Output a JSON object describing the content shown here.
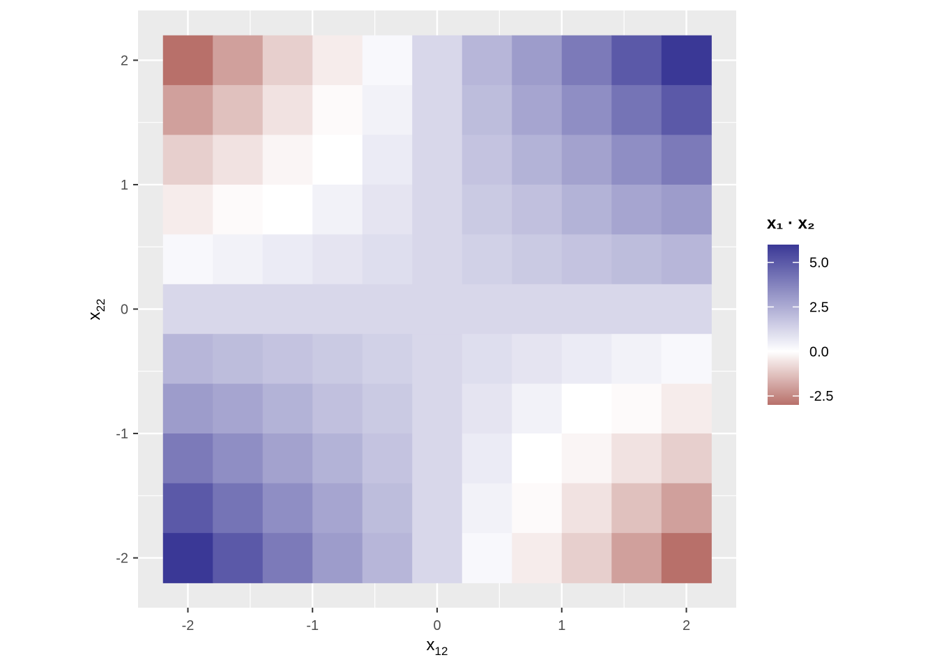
{
  "chart_data": {
    "type": "heatmap",
    "xlabel": {
      "main": "x",
      "sub": "12"
    },
    "ylabel": {
      "main": "x",
      "sub": "22"
    },
    "x_ticks": [
      -2,
      -1,
      0,
      1,
      2
    ],
    "x_tick_labels": [
      "-2",
      "-1",
      "0",
      "1",
      "2"
    ],
    "y_ticks": [
      -2,
      -1,
      0,
      1,
      2
    ],
    "y_tick_labels": [
      "-2",
      "-1",
      "0",
      "1",
      "2"
    ],
    "xlim": [
      -2.4,
      2.4
    ],
    "ylim": [
      -2.4,
      2.4
    ],
    "grid": true,
    "x_centers": [
      -2.0,
      -1.6,
      -1.2,
      -0.8,
      -0.4,
      0.0,
      0.4,
      0.8,
      1.2,
      1.6,
      2.0
    ],
    "y_centers": [
      2.0,
      1.6,
      1.2,
      0.8,
      0.4,
      0.0,
      -0.4,
      -0.8,
      -1.2,
      -1.6,
      -2.0
    ],
    "values": [
      [
        -3.0,
        -2.0,
        -1.0,
        -0.4,
        0.2,
        1.2,
        2.2,
        3.0,
        4.0,
        5.0,
        6.0
      ],
      [
        -2.0,
        -1.3,
        -0.6,
        -0.1,
        0.4,
        1.2,
        2.0,
        2.7,
        3.4,
        4.2,
        5.0
      ],
      [
        -1.0,
        -0.6,
        -0.2,
        0.0,
        0.6,
        1.2,
        1.8,
        2.3,
        2.8,
        3.4,
        4.0
      ],
      [
        -0.4,
        -0.1,
        0.0,
        0.4,
        0.8,
        1.2,
        1.6,
        1.9,
        2.3,
        2.7,
        3.0
      ],
      [
        0.2,
        0.4,
        0.6,
        0.8,
        1.0,
        1.2,
        1.4,
        1.6,
        1.8,
        2.0,
        2.2
      ],
      [
        1.2,
        1.2,
        1.2,
        1.2,
        1.2,
        1.2,
        1.2,
        1.2,
        1.2,
        1.2,
        1.2
      ],
      [
        2.2,
        2.0,
        1.8,
        1.6,
        1.4,
        1.2,
        1.0,
        0.8,
        0.6,
        0.4,
        0.2
      ],
      [
        3.0,
        2.7,
        2.3,
        1.9,
        1.6,
        1.2,
        0.8,
        0.4,
        0.0,
        -0.1,
        -0.4
      ],
      [
        4.0,
        3.4,
        2.8,
        2.3,
        1.8,
        1.2,
        0.6,
        0.0,
        -0.2,
        -0.6,
        -1.0
      ],
      [
        5.0,
        4.2,
        3.4,
        2.7,
        2.0,
        1.2,
        0.4,
        -0.1,
        -0.6,
        -1.3,
        -2.0
      ],
      [
        6.0,
        5.0,
        4.0,
        3.0,
        2.2,
        1.2,
        0.2,
        -0.4,
        -1.0,
        -2.0,
        -3.0
      ]
    ],
    "legend": {
      "title": "x₁ · x₂",
      "position": "right",
      "breaks": [
        5.0,
        2.5,
        0.0,
        -2.5
      ],
      "break_labels": [
        "5.0",
        "2.5",
        "0.0",
        "-2.5"
      ],
      "range": [
        -3.0,
        6.0
      ],
      "colors": {
        "low": "#B8706A",
        "mid": "#FFFFFF",
        "high": "#3A3896"
      }
    },
    "colors": {
      "panel_background": "#EBEBEB",
      "grid_major": "#FFFFFF"
    }
  }
}
